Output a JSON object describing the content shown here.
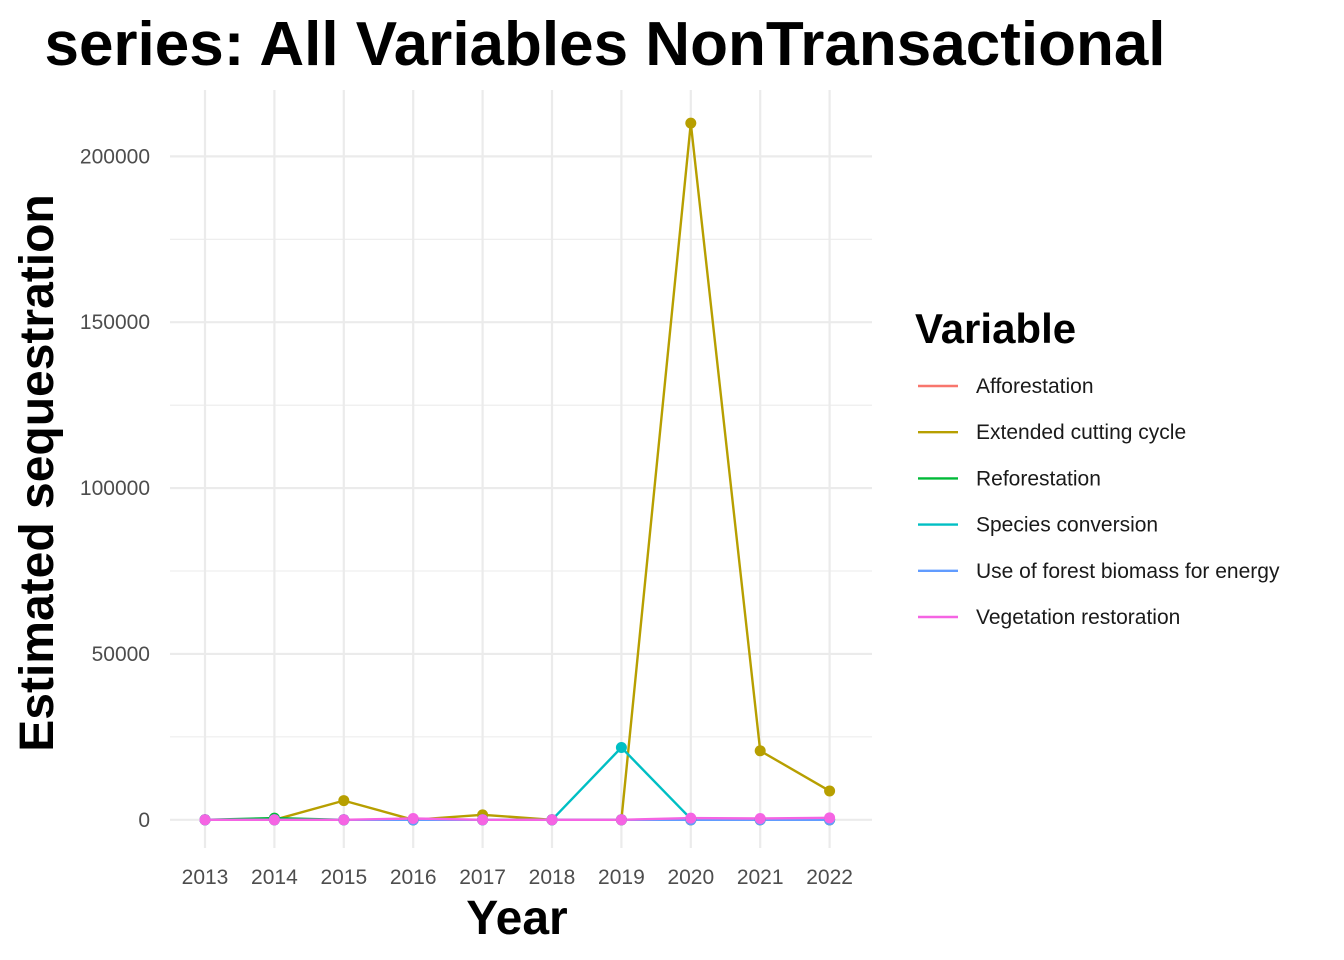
{
  "chart_data": {
    "type": "line",
    "title": "series: All Variables NonTransactional",
    "xlabel": "Year",
    "ylabel": "Estimated sequestration",
    "x": [
      2013,
      2014,
      2015,
      2016,
      2017,
      2018,
      2019,
      2020,
      2021,
      2022
    ],
    "x_tick_labels": [
      "2013",
      "2014",
      "2015",
      "2016",
      "2017",
      "2018",
      "2019",
      "2020",
      "2021",
      "2022"
    ],
    "y_ticks": [
      0,
      50000,
      100000,
      150000,
      200000
    ],
    "y_tick_labels": [
      "0",
      "50000",
      "100000",
      "150000",
      "200000"
    ],
    "ylim": [
      -8500,
      220000
    ],
    "grid": true,
    "legend_title": "Variable",
    "legend_position": "right",
    "series": [
      {
        "name": "Afforestation",
        "color": "#F8766D",
        "values": [
          0,
          0,
          0,
          0,
          0,
          0,
          0,
          0,
          0,
          0
        ]
      },
      {
        "name": "Extended cutting cycle",
        "color": "#B79F00",
        "values": [
          0,
          0,
          5800,
          0,
          1500,
          0,
          0,
          210000,
          20800,
          8700
        ]
      },
      {
        "name": "Reforestation",
        "color": "#00BA38",
        "values": [
          0,
          500,
          0,
          0,
          0,
          0,
          0,
          0,
          0,
          0
        ]
      },
      {
        "name": "Species conversion",
        "color": "#00BFC4",
        "values": [
          0,
          0,
          0,
          0,
          0,
          0,
          21800,
          300,
          200,
          200
        ]
      },
      {
        "name": "Use of forest biomass for energy",
        "color": "#619CFF",
        "values": [
          0,
          0,
          0,
          0,
          0,
          0,
          0,
          0,
          0,
          0
        ]
      },
      {
        "name": "Vegetation restoration",
        "color": "#F564E3",
        "values": [
          0,
          0,
          0,
          400,
          0,
          0,
          0,
          500,
          400,
          600
        ]
      }
    ]
  }
}
